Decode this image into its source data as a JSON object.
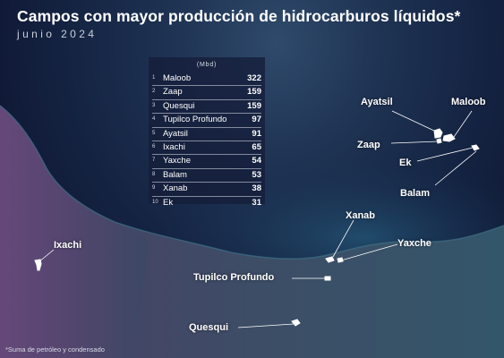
{
  "title": "Campos con mayor producción de hidrocarburos líquidos*",
  "subtitle": "junio 2024",
  "table": {
    "unit": "(Mbd)",
    "rows": [
      {
        "rank": "1",
        "name": "Maloob",
        "value": "322"
      },
      {
        "rank": "2",
        "name": "Zaap",
        "value": "159"
      },
      {
        "rank": "3",
        "name": "Quesqui",
        "value": "159"
      },
      {
        "rank": "4",
        "name": "Tupilco Profundo",
        "value": "97"
      },
      {
        "rank": "5",
        "name": "Ayatsil",
        "value": "91"
      },
      {
        "rank": "6",
        "name": "Ixachi",
        "value": "65"
      },
      {
        "rank": "7",
        "name": "Yaxche",
        "value": "54"
      },
      {
        "rank": "8",
        "name": "Balam",
        "value": "53"
      },
      {
        "rank": "9",
        "name": "Xanab",
        "value": "38"
      },
      {
        "rank": "10",
        "name": "Ek",
        "value": "31"
      }
    ]
  },
  "map_labels": {
    "ayatsil": "Ayatsil",
    "maloob": "Maloob",
    "zaap": "Zaap",
    "ek": "Ek",
    "balam": "Balam",
    "xanab": "Xanab",
    "yaxche": "Yaxche",
    "tupilco": "Tupilco Profundo",
    "quesqui": "Quesqui",
    "ixachi": "Ixachi"
  },
  "footnote": "*Suma de petróleo y condensado"
}
